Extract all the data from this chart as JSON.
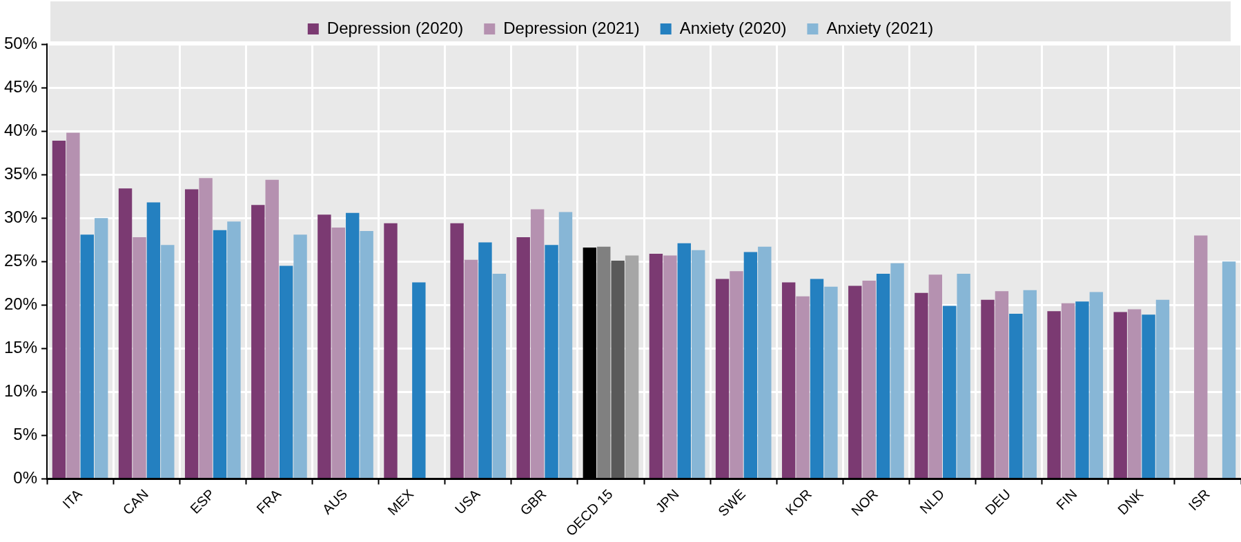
{
  "chart_data": {
    "type": "bar",
    "categories": [
      "ITA",
      "CAN",
      "ESP",
      "FRA",
      "AUS",
      "MEX",
      "USA",
      "GBR",
      "OECD 15",
      "JPN",
      "SWE",
      "KOR",
      "NOR",
      "NLD",
      "DEU",
      "FIN",
      "DNK",
      "ISR"
    ],
    "series": [
      {
        "name": "Depression (2020)",
        "color": "#7b3a72",
        "colors": [
          "#7b3a72",
          "#7b3a72",
          "#7b3a72",
          "#7b3a72",
          "#7b3a72",
          "#7b3a72",
          "#7b3a72",
          "#7b3a72",
          "#000000",
          "#7b3a72",
          "#7b3a72",
          "#7b3a72",
          "#7b3a72",
          "#7b3a72",
          "#7b3a72",
          "#7b3a72",
          "#7b3a72",
          "#7b3a72"
        ],
        "values": [
          38.9,
          33.4,
          33.3,
          31.5,
          30.4,
          29.4,
          29.4,
          27.8,
          26.6,
          25.9,
          23.0,
          22.6,
          22.2,
          21.4,
          20.6,
          19.3,
          19.2,
          null
        ]
      },
      {
        "name": "Depression (2021)",
        "color": "#b591b0",
        "colors": [
          "#b591b0",
          "#b591b0",
          "#b591b0",
          "#b591b0",
          "#b591b0",
          "#b591b0",
          "#b591b0",
          "#b591b0",
          "#808080",
          "#b591b0",
          "#b591b0",
          "#b591b0",
          "#b591b0",
          "#b591b0",
          "#b591b0",
          "#b591b0",
          "#b591b0",
          "#b591b0"
        ],
        "values": [
          39.8,
          27.8,
          34.6,
          34.4,
          28.9,
          null,
          25.2,
          31.0,
          26.7,
          25.7,
          23.9,
          21.0,
          22.8,
          23.5,
          21.6,
          20.2,
          19.5,
          28.0
        ]
      },
      {
        "name": "Anxiety (2020)",
        "color": "#2480c0",
        "colors": [
          "#2480c0",
          "#2480c0",
          "#2480c0",
          "#2480c0",
          "#2480c0",
          "#2480c0",
          "#2480c0",
          "#2480c0",
          "#595959",
          "#2480c0",
          "#2480c0",
          "#2480c0",
          "#2480c0",
          "#2480c0",
          "#2480c0",
          "#2480c0",
          "#2480c0",
          "#2480c0"
        ],
        "values": [
          28.1,
          31.8,
          28.6,
          24.5,
          30.6,
          22.6,
          27.2,
          26.9,
          25.1,
          27.1,
          26.1,
          23.0,
          23.6,
          19.9,
          19.0,
          20.4,
          18.9,
          null
        ]
      },
      {
        "name": "Anxiety (2021)",
        "color": "#87b6d6",
        "colors": [
          "#87b6d6",
          "#87b6d6",
          "#87b6d6",
          "#87b6d6",
          "#87b6d6",
          "#87b6d6",
          "#87b6d6",
          "#87b6d6",
          "#a6a6a6",
          "#87b6d6",
          "#87b6d6",
          "#87b6d6",
          "#87b6d6",
          "#87b6d6",
          "#87b6d6",
          "#87b6d6",
          "#87b6d6",
          "#87b6d6"
        ],
        "values": [
          30.0,
          26.9,
          29.6,
          28.1,
          28.5,
          null,
          23.6,
          30.7,
          25.7,
          26.3,
          26.7,
          22.1,
          24.8,
          23.6,
          21.7,
          21.5,
          20.6,
          25.0
        ]
      }
    ],
    "ylim": [
      0,
      50
    ],
    "yticks": [
      {
        "value": 0,
        "label": "0%"
      },
      {
        "value": 5,
        "label": "5%"
      },
      {
        "value": 10,
        "label": "10%"
      },
      {
        "value": 15,
        "label": "15%"
      },
      {
        "value": 20,
        "label": "20%"
      },
      {
        "value": 25,
        "label": "25%"
      },
      {
        "value": 30,
        "label": "30%"
      },
      {
        "value": 35,
        "label": "35%"
      },
      {
        "value": 40,
        "label": "40%"
      },
      {
        "value": 45,
        "label": "45%"
      },
      {
        "value": 50,
        "label": "50%"
      }
    ],
    "grid": true,
    "legend": "top"
  }
}
